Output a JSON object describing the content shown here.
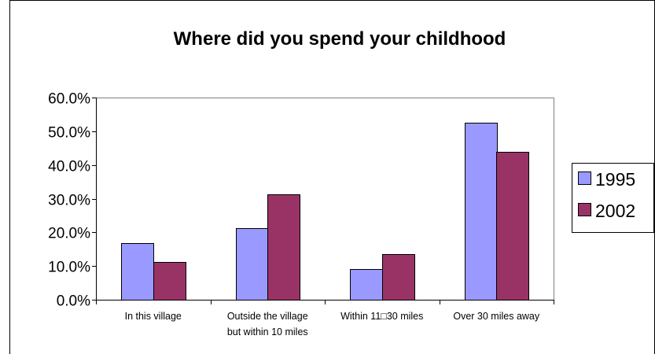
{
  "chart_data": {
    "type": "bar",
    "title": "Where did you spend your childhood",
    "categories": [
      [
        "In this village"
      ],
      [
        "Outside the village",
        "but within 10 miles"
      ],
      [
        "Within 11□30 miles"
      ],
      [
        "Over 30 miles away"
      ]
    ],
    "series": [
      {
        "name": "1995",
        "values": [
          0.169,
          0.212,
          0.091,
          0.525
        ],
        "color": "#9999ff"
      },
      {
        "name": "2002",
        "values": [
          0.113,
          0.312,
          0.135,
          0.438
        ],
        "color": "#993366"
      }
    ],
    "yticks": [
      "0.0%",
      "10.0%",
      "20.0%",
      "30.0%",
      "40.0%",
      "50.0%",
      "60.0%"
    ],
    "ylim": [
      0,
      0.6
    ],
    "grid": false,
    "legend_position": "right"
  }
}
